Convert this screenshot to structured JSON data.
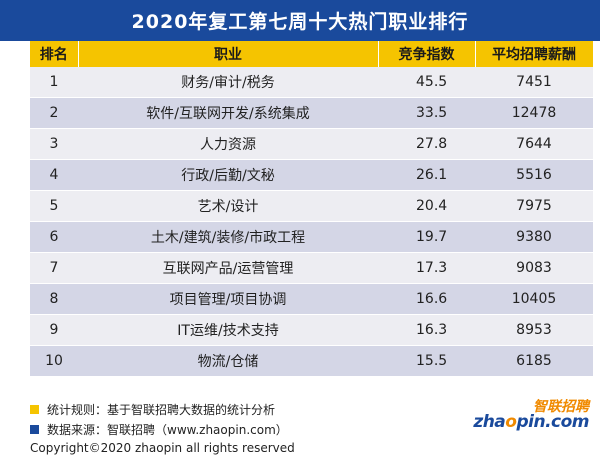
{
  "title": "2020年复工第七周十大热门职业排行",
  "table": {
    "headers": [
      "排名",
      "职业",
      "竞争指数",
      "平均招聘薪酬"
    ],
    "rows": [
      {
        "rank": "1",
        "job": "财务/审计/税务",
        "index": "45.5",
        "salary": "7451"
      },
      {
        "rank": "2",
        "job": "软件/互联网开发/系统集成",
        "index": "33.5",
        "salary": "12478"
      },
      {
        "rank": "3",
        "job": "人力资源",
        "index": "27.8",
        "salary": "7644"
      },
      {
        "rank": "4",
        "job": "行政/后勤/文秘",
        "index": "26.1",
        "salary": "5516"
      },
      {
        "rank": "5",
        "job": "艺术/设计",
        "index": "20.4",
        "salary": "7975"
      },
      {
        "rank": "6",
        "job": "土木/建筑/装修/市政工程",
        "index": "19.7",
        "salary": "9380"
      },
      {
        "rank": "7",
        "job": "互联网产品/运营管理",
        "index": "17.3",
        "salary": "9083"
      },
      {
        "rank": "8",
        "job": "项目管理/项目协调",
        "index": "16.6",
        "salary": "10405"
      },
      {
        "rank": "9",
        "job": "IT运维/技术支持",
        "index": "16.3",
        "salary": "8953"
      },
      {
        "rank": "10",
        "job": "物流/仓储",
        "index": "15.5",
        "salary": "6185"
      }
    ]
  },
  "notes": {
    "method": "统计规则：基于智联招聘大数据的统计分析",
    "source": "数据来源：智联招聘（www.zhaopin.com）"
  },
  "copyright": "Copyright©2020 zhaopin all rights reserved",
  "logo": {
    "cn": "智联招聘",
    "en_prefix": "zha",
    "en_o": "o",
    "en_suffix": "pin.com"
  },
  "colors": {
    "title_bg": "#1a4a9c",
    "header_bg": "#f5c400",
    "row_light": "#ededf2",
    "row_dark": "#d4d6e6",
    "accent_orange": "#f08a00"
  }
}
